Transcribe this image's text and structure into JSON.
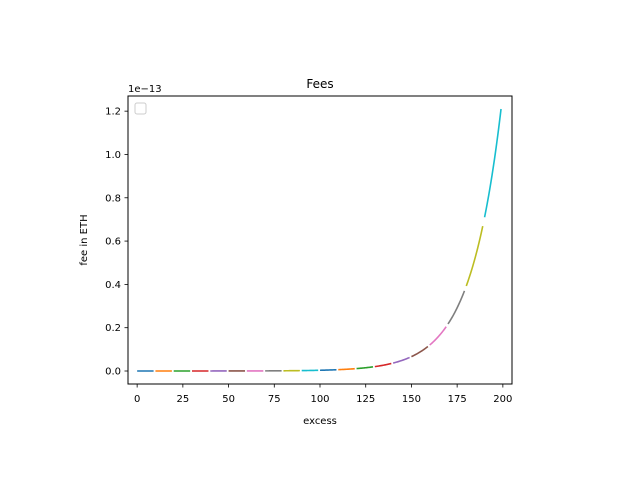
{
  "chart_data": {
    "type": "line",
    "title": "Fees",
    "xlabel": "excess",
    "ylabel": "fee in ETH",
    "y_offset_label": "1e−13",
    "xlim": [
      -5,
      205
    ],
    "ylim": [
      -0.06,
      1.27
    ],
    "xticks": [
      0,
      25,
      50,
      75,
      100,
      125,
      150,
      175,
      200
    ],
    "yticks": [
      0.0,
      0.2,
      0.4,
      0.6,
      0.8,
      1.0,
      1.2
    ],
    "ytick_labels": [
      "0.0",
      "0.2",
      "0.4",
      "0.6",
      "0.8",
      "1.0",
      "1.2"
    ],
    "grid": false,
    "legend": {
      "location": "top-left",
      "entries": []
    },
    "curve": {
      "formula": "exponential",
      "points": [
        [
          0,
          0.0
        ],
        [
          150,
          0.066
        ],
        [
          179,
          0.37
        ],
        [
          199,
          1.21
        ]
      ]
    },
    "segments": [
      {
        "x": [
          0,
          9
        ],
        "color": "#1f77b4"
      },
      {
        "x": [
          10,
          19
        ],
        "color": "#ff7f0e"
      },
      {
        "x": [
          20,
          29
        ],
        "color": "#2ca02c"
      },
      {
        "x": [
          30,
          39
        ],
        "color": "#d62728"
      },
      {
        "x": [
          40,
          49
        ],
        "color": "#9467bd"
      },
      {
        "x": [
          50,
          59
        ],
        "color": "#8c564b"
      },
      {
        "x": [
          60,
          69
        ],
        "color": "#e377c2"
      },
      {
        "x": [
          70,
          79
        ],
        "color": "#7f7f7f"
      },
      {
        "x": [
          80,
          89
        ],
        "color": "#bcbd22"
      },
      {
        "x": [
          90,
          99
        ],
        "color": "#17becf"
      },
      {
        "x": [
          100,
          109
        ],
        "color": "#1f77b4"
      },
      {
        "x": [
          110,
          119
        ],
        "color": "#ff7f0e"
      },
      {
        "x": [
          120,
          129
        ],
        "color": "#2ca02c"
      },
      {
        "x": [
          130,
          139
        ],
        "color": "#d62728"
      },
      {
        "x": [
          140,
          149
        ],
        "color": "#9467bd"
      },
      {
        "x": [
          150,
          159
        ],
        "color": "#8c564b"
      },
      {
        "x": [
          160,
          169
        ],
        "color": "#e377c2"
      },
      {
        "x": [
          170,
          179
        ],
        "color": "#7f7f7f"
      },
      {
        "x": [
          180,
          189
        ],
        "color": "#bcbd22"
      },
      {
        "x": [
          190,
          199
        ],
        "color": "#17becf"
      }
    ]
  }
}
